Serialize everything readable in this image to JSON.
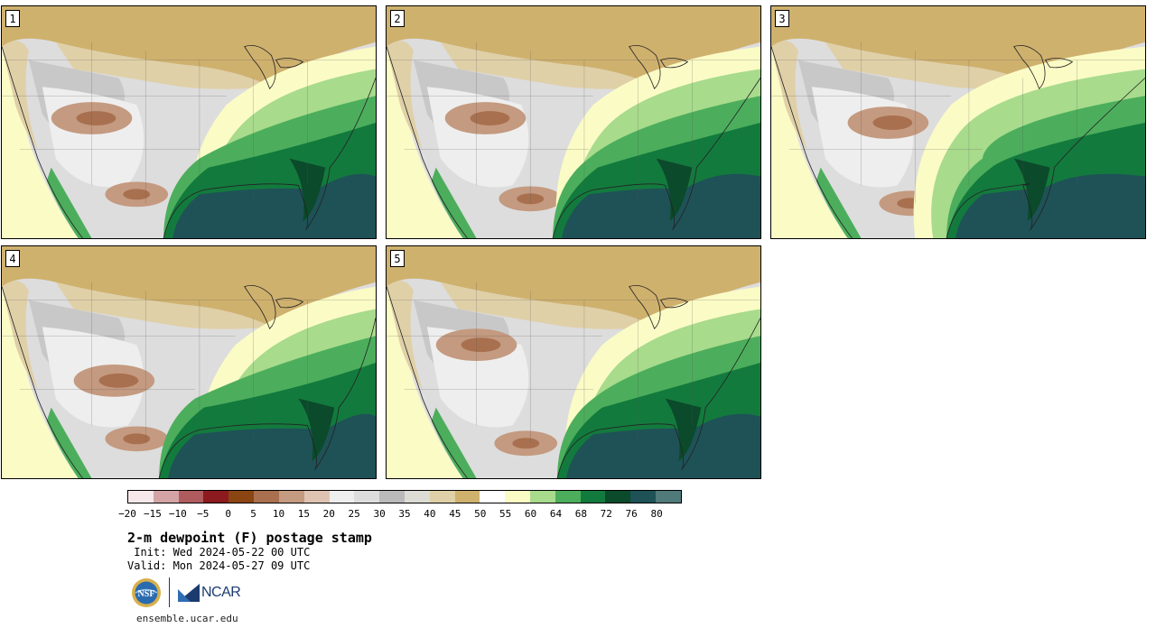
{
  "panels": [
    {
      "label": "1"
    },
    {
      "label": "2"
    },
    {
      "label": "3"
    },
    {
      "label": "4"
    },
    {
      "label": "5"
    }
  ],
  "colorbar": {
    "colors": [
      "#f6e8ea",
      "#d4a3a6",
      "#b05c5f",
      "#8c1a1e",
      "#8b4513",
      "#a8704f",
      "#c49a80",
      "#dfc3b2",
      "#eeeeee",
      "#dddddd",
      "#bababa",
      "#dcdcd4",
      "#e0d0a8",
      "#cfb16e",
      "#ffffff",
      "#fbfbc6",
      "#a8db8c",
      "#4cae5c",
      "#137a3d",
      "#0b4a2a",
      "#1e5257",
      "#517a7a"
    ],
    "ticks": [
      "−20",
      "−15",
      "−10",
      "−5",
      "0",
      "5",
      "10",
      "15",
      "20",
      "25",
      "30",
      "35",
      "40",
      "45",
      "50",
      "55",
      "60",
      "64",
      "68",
      "72",
      "76",
      "80"
    ]
  },
  "title": "2-m dewpoint (F) postage stamp",
  "init": " Init: Wed 2024-05-22 00 UTC",
  "valid": "Valid: Mon 2024-05-27 09 UTC",
  "logos": {
    "nsf": "NSF",
    "ncar": "NCAR"
  },
  "site": "ensemble.ucar.edu"
}
